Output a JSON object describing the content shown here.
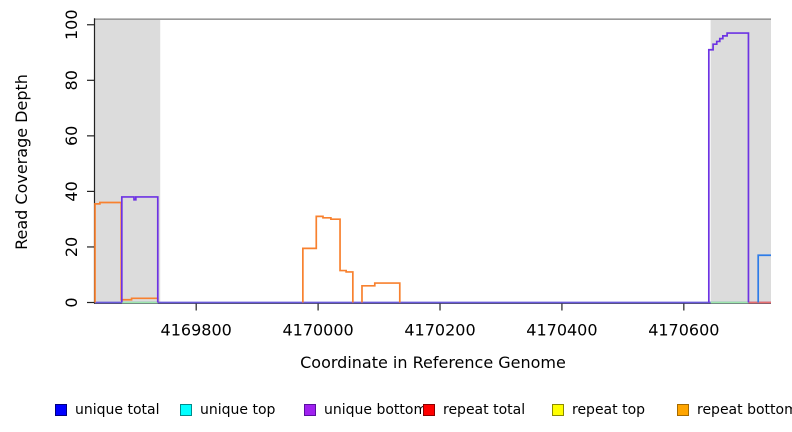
{
  "figure": {
    "x_axis": {
      "label": "Coordinate in Reference Genome",
      "ticks": [
        4169800,
        4170000,
        4170200,
        4170400,
        4170600
      ],
      "tick_labels": [
        "4169800",
        "4170000",
        "4170200",
        "4170400",
        "4170600"
      ]
    },
    "y_axis": {
      "label": "Read Coverage Depth",
      "ticks": [
        0,
        20,
        40,
        60,
        80,
        100
      ],
      "tick_labels": [
        "0",
        "20",
        "40",
        "60",
        "80",
        "100"
      ]
    }
  },
  "legend": {
    "items": [
      {
        "label": "unique total",
        "fill": "#0000FF",
        "border": "#000080"
      },
      {
        "label": "unique top",
        "fill": "#00FFFF",
        "border": "#008B8B"
      },
      {
        "label": "unique bottom",
        "fill": "#A020F0",
        "border": "#5A0FA0"
      },
      {
        "label": "repeat total",
        "fill": "#FF0000",
        "border": "#8B0000"
      },
      {
        "label": "repeat top",
        "fill": "#FFFF00",
        "border": "#8A8A00"
      },
      {
        "label": "repeat bottom",
        "fill": "#FFA500",
        "border": "#A56A00"
      }
    ]
  },
  "chart_data": {
    "type": "line",
    "subtype": "step-coverage",
    "title": "",
    "xlabel": "Coordinate in Reference Genome",
    "ylabel": "Read Coverage Depth",
    "xlim": [
      4169634,
      4170743
    ],
    "ylim": [
      0,
      102
    ],
    "xticks": [
      4169800,
      4170000,
      4170200,
      4170400,
      4170600
    ],
    "yticks": [
      0,
      20,
      40,
      60,
      80,
      100
    ],
    "grid": false,
    "legend_position": "bottom",
    "repeat_mask_regions": [
      {
        "start": 4169634,
        "end": 4169741
      },
      {
        "start": 4170644,
        "end": 4170743
      }
    ],
    "series": [
      {
        "name": "unique total",
        "color": "#0000FF"
      },
      {
        "name": "unique top",
        "color": "#00FFFF"
      },
      {
        "name": "unique bottom",
        "color": "#A020F0"
      },
      {
        "name": "repeat total",
        "color": "#FF0000"
      },
      {
        "name": "repeat top",
        "color": "#FFFF00"
      },
      {
        "name": "repeat bottom",
        "color": "#FFA500"
      }
    ],
    "drawn": {
      "top_border": {
        "color": "#999999",
        "y_value": 102
      },
      "mask_fill_color": "#DCDCDC",
      "baseline": {
        "color": "#6A5BDB",
        "y": 0
      },
      "baseline_overlays": [
        {
          "from": 4169678,
          "to": 4169737,
          "color": "#9FE8AE"
        },
        {
          "from": 4170644,
          "to": 4170706,
          "color": "#9FE8AE"
        },
        {
          "from": 4170706,
          "to": 4170743,
          "color": "#E87070"
        }
      ],
      "traces": [
        {
          "series": "repeat bottom",
          "color": "#F8812F",
          "points": [
            [
              4169634,
              35.5
            ],
            [
              4169642,
              36
            ],
            [
              4169677,
              1
            ],
            [
              4169694,
              1.5
            ],
            [
              4169737,
              0
            ]
          ]
        },
        {
          "series": "repeat bottom",
          "color": "#F8812F",
          "points": [
            [
              4169975,
              19.5
            ],
            [
              4169997,
              31
            ],
            [
              4170008,
              30.5
            ],
            [
              4170021,
              30
            ],
            [
              4170036,
              11.5
            ],
            [
              4170046,
              11
            ],
            [
              4170057,
              0
            ]
          ]
        },
        {
          "series": "repeat bottom",
          "color": "#F8812F",
          "points": [
            [
              4170072,
              6
            ],
            [
              4170093,
              7
            ],
            [
              4170134,
              0
            ]
          ]
        },
        {
          "series": "unique bottom over unique total",
          "color": "#6D33E3",
          "points": [
            [
              4169678,
              38
            ],
            [
              4169698,
              37
            ],
            [
              4169701,
              38
            ],
            [
              4169737,
              0
            ]
          ]
        },
        {
          "series": "unique bottom over unique total",
          "color": "#6D33E3",
          "points": [
            [
              4170641,
              91
            ],
            [
              4170648,
              93
            ],
            [
              4170654,
              94
            ],
            [
              4170659,
              95
            ],
            [
              4170664,
              96
            ],
            [
              4170671,
              97
            ],
            [
              4170706,
              0
            ]
          ]
        },
        {
          "series": "unique total",
          "color": "#2E7CE8",
          "points": [
            [
              4170722,
              17
            ],
            [
              4170743,
              17
            ]
          ]
        }
      ]
    }
  }
}
